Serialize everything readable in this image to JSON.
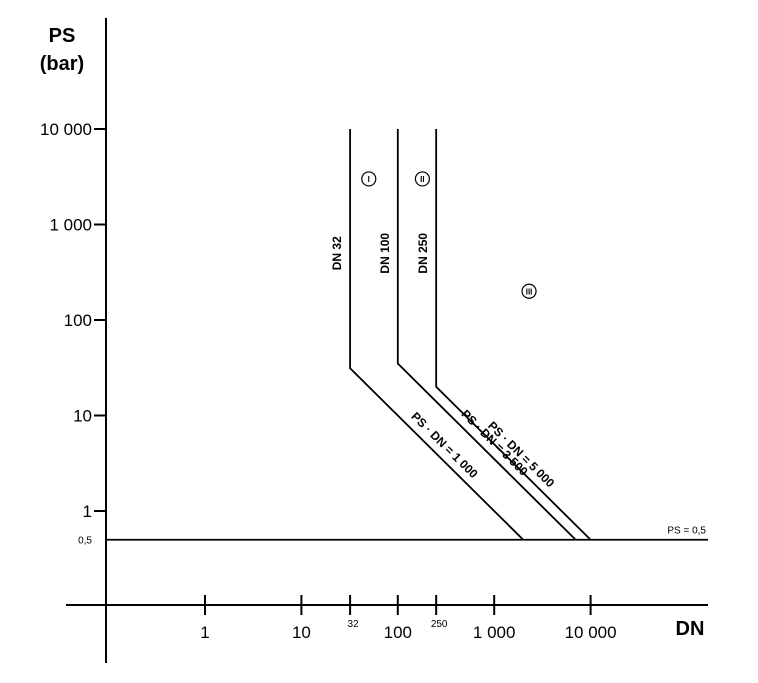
{
  "chart_data": {
    "type": "line",
    "title": "",
    "xlabel": "DN",
    "ylabel": "PS",
    "ylabel_unit": "(bar)",
    "x_scale": "log",
    "y_scale": "log",
    "xlim": [
      0.2,
      130000
    ],
    "ylim": [
      0.08,
      10000
    ],
    "x_ticks": [
      {
        "value": 1,
        "label": "1",
        "size": "large"
      },
      {
        "value": 10,
        "label": "10",
        "size": "large"
      },
      {
        "value": 32,
        "label": "32",
        "size": "small"
      },
      {
        "value": 100,
        "label": "100",
        "size": "large"
      },
      {
        "value": 250,
        "label": "250",
        "size": "small"
      },
      {
        "value": 1000,
        "label": "1 000",
        "size": "large"
      },
      {
        "value": 10000,
        "label": "10 000",
        "size": "large"
      }
    ],
    "y_ticks": [
      {
        "value": 0.5,
        "label": "0,5",
        "size": "small"
      },
      {
        "value": 1,
        "label": "1",
        "size": "large"
      },
      {
        "value": 10,
        "label": "10",
        "size": "large"
      },
      {
        "value": 100,
        "label": "100",
        "size": "large"
      },
      {
        "value": 1000,
        "label": "1 000",
        "size": "large"
      },
      {
        "value": 10000,
        "label": "10 000",
        "size": "large"
      }
    ],
    "series": [
      {
        "vertical_label": "DN 32",
        "slope_label": "PS · DN = 1 000",
        "points": [
          [
            32,
            10000
          ],
          [
            32,
            31.25
          ],
          [
            2000,
            0.5
          ]
        ]
      },
      {
        "vertical_label": "DN 100",
        "slope_label": "PS · DN = 3 500",
        "points": [
          [
            100,
            10000
          ],
          [
            100,
            35
          ],
          [
            7000,
            0.5
          ]
        ]
      },
      {
        "vertical_label": "DN 250",
        "slope_label": "PS · DN = 5 000",
        "points": [
          [
            250,
            10000
          ],
          [
            250,
            20
          ],
          [
            10000,
            0.5
          ]
        ]
      }
    ],
    "horizontal_line": {
      "y": 0.5,
      "label": "PS = 0,5"
    },
    "regions": [
      {
        "label": "I",
        "x": 50,
        "y": 3000
      },
      {
        "label": "II",
        "x": 180,
        "y": 3000
      },
      {
        "label": "III",
        "x": 2300,
        "y": 200
      }
    ]
  }
}
